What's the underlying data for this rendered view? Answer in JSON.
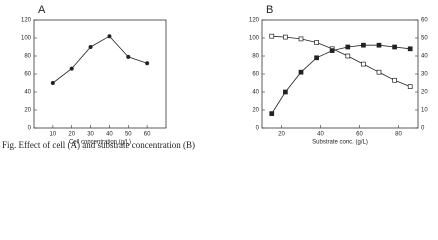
{
  "chart_data": [
    {
      "type": "line",
      "panel": "A",
      "x_label": "Cell concentration (g/L)",
      "x": [
        10,
        20,
        30,
        40,
        50,
        60
      ],
      "xlim": [
        0,
        70
      ],
      "xticks": [
        10,
        20,
        30,
        40,
        50,
        60
      ],
      "ylim": [
        0,
        120
      ],
      "yticks": [
        0,
        20,
        40,
        60,
        80,
        100,
        120
      ],
      "series": [
        {
          "color": "#222222",
          "marker": "circle",
          "values": [
            50,
            66,
            90,
            102,
            79,
            72
          ]
        }
      ]
    },
    {
      "type": "line",
      "panel": "B",
      "x_label": "Substrate conc. (g/L)",
      "x": [
        15,
        22,
        30,
        38,
        46,
        54,
        62,
        70,
        78,
        86
      ],
      "xlim": [
        10,
        90
      ],
      "xticks": [
        20,
        40,
        60,
        80
      ],
      "ylim": [
        0,
        120
      ],
      "yticks": [
        0,
        20,
        40,
        60,
        80,
        100,
        120
      ],
      "y2lim": [
        0,
        60
      ],
      "y2ticks": [
        0,
        10,
        20,
        30,
        40,
        50,
        60
      ],
      "series": [
        {
          "color": "#222222",
          "marker": "square-open",
          "values": [
            102,
            101,
            99,
            95,
            88,
            80,
            71,
            62,
            53,
            46
          ]
        },
        {
          "color": "#222222",
          "marker": "square",
          "axis": "y2",
          "values": [
            8,
            20,
            31,
            39,
            43,
            45,
            46,
            46,
            45,
            44
          ]
        }
      ]
    }
  ],
  "caption": "Fig. Effect of cell (A) and substrate concentration (B)"
}
